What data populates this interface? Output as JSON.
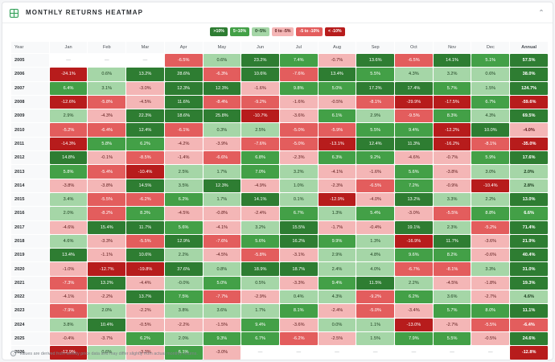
{
  "header": {
    "title": "MONTHLY RETURNS HEATMAP",
    "icon": "grid-icon",
    "collapse_icon": "chevron-up-icon"
  },
  "legend": [
    {
      "label": ">10%",
      "bg": "#2e7d32",
      "fg": "#ffffff"
    },
    {
      "label": "5~10%",
      "bg": "#43a047",
      "fg": "#ffffff"
    },
    {
      "label": "0~5%",
      "bg": "#a5d6a7",
      "fg": "#1b3d1e"
    },
    {
      "label": "0 to -5%",
      "bg": "#f4b6b6",
      "fg": "#5a1a1a"
    },
    {
      "label": "-5 to -10%",
      "bg": "#e35d5d",
      "fg": "#ffffff"
    },
    {
      "label": "< -10%",
      "bg": "#b71c1c",
      "fg": "#ffffff"
    }
  ],
  "note": {
    "icon": "info-icon",
    "text": "Values are derived from weekly price data and may differ slightly from actual monthly returns."
  },
  "chart_data": {
    "type": "heatmap",
    "title": "MONTHLY RETURNS HEATMAP",
    "row_header": "Year",
    "columns": [
      "Jan",
      "Feb",
      "Mar",
      "Apr",
      "May",
      "Jun",
      "Jul",
      "Aug",
      "Sep",
      "Oct",
      "Nov",
      "Dec",
      "Annual"
    ],
    "rows": [
      {
        "year": "2005",
        "values": [
          "—",
          "—",
          "—",
          "-6.5%",
          "0.6%",
          "23.2%",
          "7.4%",
          "-0.7%",
          "13.6%",
          "-6.5%",
          "14.1%",
          "5.1%",
          "57.5%"
        ]
      },
      {
        "year": "2006",
        "values": [
          "-24.1%",
          "0.6%",
          "13.2%",
          "28.6%",
          "-6.3%",
          "10.6%",
          "-7.6%",
          "13.4%",
          "5.5%",
          "4.3%",
          "3.2%",
          "0.6%",
          "38.0%"
        ]
      },
      {
        "year": "2007",
        "values": [
          "6.4%",
          "3.1%",
          "-3.0%",
          "12.3%",
          "12.3%",
          "-1.6%",
          "9.8%",
          "5.0%",
          "17.2%",
          "17.4%",
          "5.7%",
          "1.5%",
          "124.7%"
        ]
      },
      {
        "year": "2008",
        "values": [
          "-12.6%",
          "-5.8%",
          "-4.5%",
          "11.6%",
          "-8.4%",
          "-9.2%",
          "-1.6%",
          "-0.5%",
          "-8.1%",
          "-29.9%",
          "-17.5%",
          "6.7%",
          "-59.6%"
        ]
      },
      {
        "year": "2009",
        "values": [
          "2.9%",
          "-4.3%",
          "22.3%",
          "18.6%",
          "25.8%",
          "-10.7%",
          "-3.6%",
          "6.1%",
          "2.9%",
          "-9.5%",
          "8.3%",
          "4.3%",
          "69.5%"
        ]
      },
      {
        "year": "2010",
        "values": [
          "-5.2%",
          "-6.4%",
          "12.4%",
          "-6.1%",
          "0.3%",
          "2.5%",
          "-5.0%",
          "-5.9%",
          "5.5%",
          "9.4%",
          "-12.2%",
          "10.0%",
          "-4.0%"
        ]
      },
      {
        "year": "2011",
        "values": [
          "-14.3%",
          "5.8%",
          "6.2%",
          "-4.2%",
          "-3.9%",
          "-7.6%",
          "-5.0%",
          "-13.1%",
          "12.4%",
          "11.3%",
          "-16.2%",
          "-8.1%",
          "-35.0%"
        ]
      },
      {
        "year": "2012",
        "values": [
          "14.8%",
          "-0.1%",
          "-8.5%",
          "-1.4%",
          "-6.6%",
          "6.8%",
          "-2.3%",
          "6.3%",
          "9.2%",
          "-4.6%",
          "-0.7%",
          "5.9%",
          "17.6%"
        ]
      },
      {
        "year": "2013",
        "values": [
          "5.8%",
          "-5.4%",
          "-10.4%",
          "2.5%",
          "1.7%",
          "7.0%",
          "3.2%",
          "-4.1%",
          "-1.6%",
          "5.6%",
          "-3.8%",
          "3.0%",
          "2.0%"
        ]
      },
      {
        "year": "2014",
        "values": [
          "-3.8%",
          "-3.8%",
          "14.5%",
          "3.5%",
          "12.3%",
          "-4.9%",
          "1.0%",
          "-2.3%",
          "-6.5%",
          "7.2%",
          "-0.9%",
          "-10.4%",
          "2.8%"
        ]
      },
      {
        "year": "2015",
        "values": [
          "3.4%",
          "-5.5%",
          "-6.2%",
          "6.2%",
          "1.7%",
          "14.1%",
          "0.1%",
          "-12.9%",
          "-4.0%",
          "13.2%",
          "3.3%",
          "2.2%",
          "13.0%"
        ]
      },
      {
        "year": "2016",
        "values": [
          "2.0%",
          "-8.2%",
          "8.3%",
          "-4.5%",
          "-0.8%",
          "-2.4%",
          "6.7%",
          "1.3%",
          "5.4%",
          "-3.0%",
          "-5.5%",
          "8.8%",
          "6.6%"
        ]
      },
      {
        "year": "2017",
        "values": [
          "-4.6%",
          "15.4%",
          "11.7%",
          "5.6%",
          "-4.1%",
          "3.2%",
          "15.5%",
          "-1.7%",
          "-0.4%",
          "19.1%",
          "2.3%",
          "-5.2%",
          "71.4%"
        ]
      },
      {
        "year": "2018",
        "values": [
          "4.6%",
          "-3.3%",
          "-5.5%",
          "12.9%",
          "-7.6%",
          "5.6%",
          "16.2%",
          "9.9%",
          "1.3%",
          "-16.9%",
          "11.7%",
          "-3.6%",
          "21.9%"
        ]
      },
      {
        "year": "2019",
        "values": [
          "13.4%",
          "-1.1%",
          "10.6%",
          "2.2%",
          "-4.5%",
          "-5.8%",
          "-3.1%",
          "2.9%",
          "4.8%",
          "9.6%",
          "8.2%",
          "-0.6%",
          "40.4%"
        ]
      },
      {
        "year": "2020",
        "values": [
          "-1.0%",
          "-12.7%",
          "-19.8%",
          "37.6%",
          "0.8%",
          "18.9%",
          "18.7%",
          "2.4%",
          "4.0%",
          "-6.7%",
          "-8.1%",
          "3.3%",
          "31.0%"
        ]
      },
      {
        "year": "2021",
        "values": [
          "-7.3%",
          "13.2%",
          "-4.4%",
          "-0.0%",
          "5.0%",
          "0.5%",
          "-3.3%",
          "9.4%",
          "11.5%",
          "2.2%",
          "-4.5%",
          "-1.8%",
          "19.3%"
        ]
      },
      {
        "year": "2022",
        "values": [
          "-4.1%",
          "-2.2%",
          "13.7%",
          "7.5%",
          "-7.7%",
          "-2.9%",
          "0.4%",
          "4.3%",
          "-9.2%",
          "6.2%",
          "3.6%",
          "-2.7%",
          "4.6%"
        ]
      },
      {
        "year": "2023",
        "values": [
          "-7.9%",
          "2.0%",
          "-2.2%",
          "3.8%",
          "3.6%",
          "1.7%",
          "8.1%",
          "-2.4%",
          "-5.0%",
          "-3.4%",
          "5.7%",
          "8.0%",
          "11.1%"
        ]
      },
      {
        "year": "2024",
        "values": [
          "3.8%",
          "10.4%",
          "-0.5%",
          "-2.2%",
          "-1.5%",
          "9.4%",
          "-3.6%",
          "0.0%",
          "1.1%",
          "-13.0%",
          "-2.7%",
          "-5.5%",
          "-6.4%"
        ]
      },
      {
        "year": "2025",
        "values": [
          "-0.4%",
          "-3.7%",
          "6.2%",
          "2.0%",
          "9.3%",
          "6.7%",
          "-6.2%",
          "-2.5%",
          "1.5%",
          "7.9%",
          "5.5%",
          "-0.5%",
          "24.6%"
        ]
      },
      {
        "year": "2026",
        "values": [
          "-12.9%",
          "0.6%",
          "-3.3%",
          "6.1%",
          "-3.0%",
          "—",
          "—",
          "—",
          "—",
          "—",
          "—",
          "—",
          "-12.8%"
        ]
      }
    ]
  }
}
